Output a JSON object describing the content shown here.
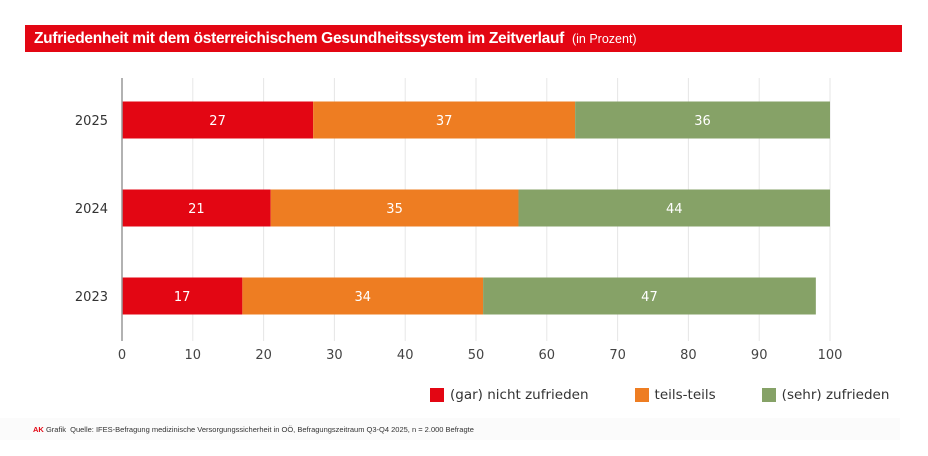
{
  "header": {
    "title": "Zufriedenheit mit dem österreichischem Gesundheitssystem im Zeitverlauf",
    "subtitle": "(in Prozent)"
  },
  "footer": {
    "brand": "AK",
    "label": "Grafik",
    "source": "Quelle: IFES-Befragung medizinische Versorgungssicherheit in OÖ, Befragungszeitraum Q3-Q4 2025, n = 2.000 Befragte"
  },
  "colors": {
    "title_bg": "#e30613",
    "nicht_zufrieden": "#e30613",
    "teils": "#ee7d22",
    "zufrieden": "#86a267",
    "grid": "#e6e6e6",
    "axis": "#999999"
  },
  "legend": [
    {
      "label": "(gar) nicht zufrieden",
      "color": "#e30613"
    },
    {
      "label": "teils-teils",
      "color": "#ee7d22"
    },
    {
      "label": "(sehr) zufrieden",
      "color": "#86a267"
    }
  ],
  "chart_data": {
    "type": "bar",
    "orientation": "horizontal",
    "stacked": true,
    "title": "Zufriedenheit mit dem österreichischem Gesundheitssystem im Zeitverlauf",
    "subtitle": "(in Prozent)",
    "xlabel": "",
    "ylabel": "",
    "categories": [
      "2025",
      "2024",
      "2023"
    ],
    "series": [
      {
        "name": "(gar) nicht zufrieden",
        "color": "#e30613",
        "values": [
          27,
          21,
          17
        ]
      },
      {
        "name": "teils-teils",
        "color": "#ee7d22",
        "values": [
          37,
          35,
          34
        ]
      },
      {
        "name": "(sehr) zufrieden",
        "color": "#86a267",
        "values": [
          36,
          44,
          47
        ]
      }
    ],
    "xlim": [
      0,
      100
    ],
    "xticks": [
      0,
      10,
      20,
      30,
      40,
      50,
      60,
      70,
      80,
      90,
      100
    ],
    "grid": true,
    "legend_position": "bottom-right",
    "data_labels": true
  }
}
